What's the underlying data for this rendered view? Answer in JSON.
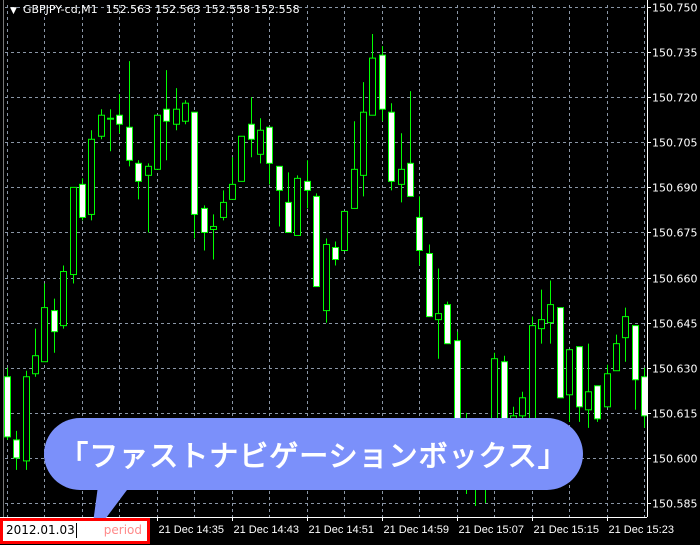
{
  "header": {
    "symbol": "GBPJPY-cd,M1",
    "quotes": [
      "152.563",
      "152.563",
      "152.558",
      "152.558"
    ]
  },
  "callout": {
    "text": "「ファストナビゲーションボックス」",
    "color": "#7b90fa"
  },
  "period_box": {
    "value": "2012.01.03",
    "placeholder": "period",
    "border_color": "#ff0000"
  },
  "colors": {
    "background": "#000000",
    "bull_outline": "#00ff00",
    "bear_body": "#ffffff",
    "grid": "#8a96a6"
  },
  "chart_data": {
    "type": "candlestick",
    "title": "GBPJPY-cd,M1",
    "grid": true,
    "ylim": [
      150.585,
      150.75
    ],
    "y_ticks": [
      "150.750",
      "150.735",
      "150.720",
      "150.705",
      "150.690",
      "150.675",
      "150.660",
      "150.645",
      "150.630",
      "150.615",
      "150.600",
      "150.585"
    ],
    "x_ticks": [
      "21 Dec 14:35",
      "21 Dec 14:43",
      "21 Dec 14:51",
      "21 Dec 14:59",
      "21 Dec 15:07",
      "21 Dec 15:15",
      "21 Dec 15:23"
    ],
    "first_bar_time": "21 Dec 14:19",
    "bar_interval": "1 min",
    "ohlc_fields": [
      "open",
      "high",
      "low",
      "close"
    ],
    "candles": [
      [
        150.627,
        150.63,
        150.606,
        150.607
      ],
      [
        150.606,
        150.609,
        150.596,
        150.6
      ],
      [
        150.599,
        150.629,
        150.596,
        150.627
      ],
      [
        150.628,
        150.643,
        150.627,
        150.634
      ],
      [
        150.632,
        150.658,
        150.632,
        150.65
      ],
      [
        150.649,
        150.653,
        150.635,
        150.642
      ],
      [
        150.644,
        150.664,
        150.643,
        150.662
      ],
      [
        150.661,
        150.69,
        150.658,
        150.69
      ],
      [
        150.691,
        150.693,
        150.679,
        150.68
      ],
      [
        150.681,
        150.709,
        150.679,
        150.706
      ],
      [
        150.707,
        150.716,
        150.706,
        150.714
      ],
      [
        150.713,
        150.716,
        150.702,
        150.713
      ],
      [
        150.714,
        150.721,
        150.708,
        150.711
      ],
      [
        150.71,
        150.732,
        150.697,
        150.699
      ],
      [
        150.698,
        150.699,
        150.686,
        150.692
      ],
      [
        150.694,
        150.698,
        150.675,
        150.697
      ],
      [
        150.696,
        150.714,
        150.696,
        150.714
      ],
      [
        150.716,
        150.729,
        150.699,
        150.712
      ],
      [
        150.711,
        150.723,
        150.709,
        150.716
      ],
      [
        150.712,
        150.719,
        150.711,
        150.718
      ],
      [
        150.715,
        150.715,
        150.673,
        150.681
      ],
      [
        150.683,
        150.684,
        150.669,
        150.675
      ],
      [
        150.676,
        150.681,
        150.666,
        150.677
      ],
      [
        150.68,
        150.689,
        150.679,
        150.685
      ],
      [
        150.686,
        150.7,
        150.686,
        150.691
      ],
      [
        150.692,
        150.707,
        150.692,
        150.707
      ],
      [
        150.711,
        150.72,
        150.7,
        150.706
      ],
      [
        150.701,
        150.713,
        150.698,
        150.709
      ],
      [
        150.71,
        150.71,
        150.691,
        150.698
      ],
      [
        150.697,
        150.697,
        150.677,
        150.689
      ],
      [
        150.685,
        150.695,
        150.675,
        150.675
      ],
      [
        150.674,
        150.694,
        150.674,
        150.693
      ],
      [
        150.692,
        150.699,
        150.683,
        150.689
      ],
      [
        150.687,
        150.688,
        150.657,
        150.657
      ],
      [
        150.649,
        150.673,
        150.645,
        150.671
      ],
      [
        150.67,
        150.672,
        150.664,
        150.666
      ],
      [
        150.669,
        150.682,
        150.669,
        150.682
      ],
      [
        150.683,
        150.712,
        150.683,
        150.696
      ],
      [
        150.694,
        150.725,
        150.687,
        150.715
      ],
      [
        150.714,
        150.741,
        150.714,
        150.733
      ],
      [
        150.734,
        150.737,
        150.712,
        150.716
      ],
      [
        150.715,
        150.718,
        150.689,
        150.692
      ],
      [
        150.691,
        150.708,
        150.685,
        150.696
      ],
      [
        150.698,
        150.722,
        150.687,
        150.687
      ],
      [
        150.68,
        150.687,
        150.664,
        150.669
      ],
      [
        150.668,
        150.671,
        150.647,
        150.647
      ],
      [
        150.646,
        150.663,
        150.633,
        150.648
      ],
      [
        150.651,
        150.652,
        150.638,
        150.638
      ],
      [
        150.639,
        150.642,
        150.611,
        150.612
      ],
      [
        150.612,
        150.615,
        150.588,
        150.595
      ],
      [
        150.595,
        150.6,
        150.584,
        150.59
      ],
      [
        150.59,
        150.605,
        150.585,
        150.603
      ],
      [
        150.603,
        150.635,
        150.6,
        150.633
      ],
      [
        150.632,
        150.634,
        150.61,
        150.613
      ],
      [
        150.61,
        150.617,
        150.598,
        150.614
      ],
      [
        150.614,
        150.622,
        150.605,
        150.62
      ],
      [
        150.613,
        150.647,
        150.61,
        150.644
      ],
      [
        150.643,
        150.656,
        150.638,
        150.646
      ],
      [
        150.645,
        150.659,
        150.638,
        150.651
      ],
      [
        150.65,
        150.65,
        150.62,
        150.62
      ],
      [
        150.621,
        150.636,
        150.612,
        150.636
      ],
      [
        150.637,
        150.637,
        150.612,
        150.617
      ],
      [
        150.616,
        150.638,
        150.61,
        150.622
      ],
      [
        150.624,
        150.624,
        150.612,
        150.613
      ],
      [
        150.617,
        150.631,
        150.617,
        150.628
      ],
      [
        150.629,
        150.641,
        150.629,
        150.638
      ],
      [
        150.64,
        150.65,
        150.632,
        150.647
      ],
      [
        150.644,
        150.644,
        150.616,
        150.626
      ],
      [
        150.627,
        150.63,
        150.61,
        150.614
      ]
    ]
  }
}
